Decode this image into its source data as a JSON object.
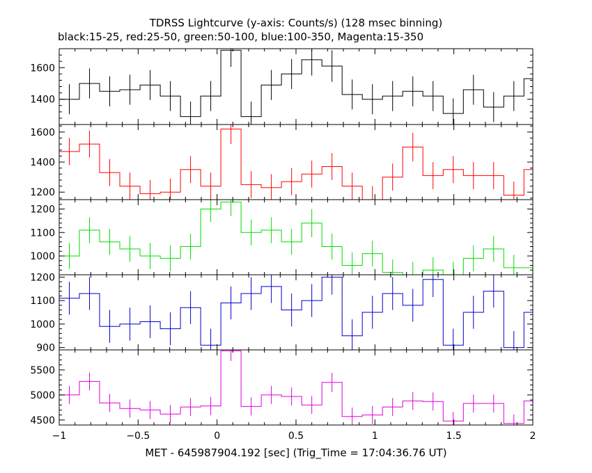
{
  "title": "TDRSS Lightcurve (y-axis: Counts/s) (128 msec binning)",
  "subtitle": "black:15-25, red:25-50, green:50-100, blue:100-350, Magenta:15-350",
  "xlabel": "MET - 645987904.192 [sec] (Trig_Time = 17:04:36.76 UT)",
  "chart_data": {
    "type": "line",
    "step": true,
    "error_bars": true,
    "title": "TDRSS Lightcurve (y-axis: Counts/s) (128 msec binning)",
    "subtitle": "black:15-25, red:25-50, green:50-100, blue:100-350, Magenta:15-350",
    "xlabel": "MET - 645987904.192 [sec] (Trig_Time = 17:04:36.76 UT)",
    "xlim": [
      -1,
      2
    ],
    "xticks": [
      -1,
      -0.5,
      0,
      0.5,
      1,
      1.5,
      2
    ],
    "xtick_labels": [
      "−1",
      "−0.5",
      "0",
      "0.5",
      "1",
      "1.5",
      "2"
    ],
    "bin_width": 0.128,
    "x": [
      -0.936,
      -0.808,
      -0.68,
      -0.552,
      -0.424,
      -0.296,
      -0.168,
      -0.04,
      0.088,
      0.216,
      0.344,
      0.472,
      0.6,
      0.728,
      0.856,
      0.984,
      1.112,
      1.24,
      1.368,
      1.496,
      1.624,
      1.752,
      1.88,
      2.008
    ],
    "panels": [
      {
        "name": "black:15-25",
        "color": "#000000",
        "ylim": [
          1240,
          1720
        ],
        "yticks": [
          1400,
          1600
        ],
        "values": [
          1400,
          1500,
          1450,
          1460,
          1490,
          1420,
          1290,
          1420,
          1710,
          1290,
          1490,
          1560,
          1650,
          1610,
          1430,
          1400,
          1420,
          1450,
          1420,
          1310,
          1460,
          1350,
          1420,
          1530
        ],
        "errors": [
          95,
          95,
          95,
          95,
          95,
          95,
          95,
          95,
          105,
          95,
          95,
          95,
          100,
          100,
          95,
          95,
          95,
          95,
          95,
          95,
          95,
          95,
          95,
          95
        ]
      },
      {
        "name": "red:25-50",
        "color": "#ff0000",
        "ylim": [
          1150,
          1650
        ],
        "yticks": [
          1200,
          1400,
          1600
        ],
        "values": [
          1470,
          1520,
          1330,
          1240,
          1190,
          1200,
          1350,
          1240,
          1620,
          1250,
          1230,
          1270,
          1320,
          1370,
          1240,
          1150,
          1300,
          1500,
          1310,
          1350,
          1310,
          1310,
          1180,
          1350
        ],
        "errors": [
          90,
          90,
          90,
          90,
          90,
          90,
          90,
          90,
          100,
          90,
          90,
          90,
          90,
          90,
          90,
          90,
          90,
          95,
          90,
          90,
          90,
          90,
          90,
          90
        ]
      },
      {
        "name": "green:50-100",
        "color": "#00dd00",
        "ylim": [
          920,
          1240
        ],
        "yticks": [
          1000,
          1100,
          1200
        ],
        "values": [
          1000,
          1110,
          1060,
          1030,
          1000,
          990,
          1040,
          1200,
          1230,
          1100,
          1110,
          1060,
          1140,
          1040,
          960,
          1010,
          930,
          920,
          940,
          920,
          990,
          1030,
          950,
          950
        ],
        "errors": [
          55,
          55,
          55,
          55,
          55,
          55,
          55,
          55,
          60,
          55,
          55,
          55,
          60,
          55,
          55,
          55,
          55,
          55,
          55,
          55,
          55,
          55,
          55,
          55
        ]
      },
      {
        "name": "blue:100-350",
        "color": "#0000cc",
        "ylim": [
          890,
          1210
        ],
        "yticks": [
          900,
          1000,
          1100,
          1200
        ],
        "values": [
          1110,
          1130,
          990,
          1000,
          1010,
          980,
          1070,
          910,
          1090,
          1130,
          1160,
          1060,
          1100,
          1200,
          950,
          1050,
          1130,
          1080,
          1190,
          910,
          1050,
          1140,
          900,
          1050
        ],
        "errors": [
          70,
          70,
          70,
          70,
          70,
          70,
          70,
          70,
          70,
          70,
          70,
          70,
          70,
          75,
          70,
          70,
          70,
          70,
          75,
          70,
          70,
          70,
          70,
          70
        ]
      },
      {
        "name": "Magenta:15-350",
        "color": "#dd00dd",
        "ylim": [
          4400,
          5900
        ],
        "yticks": [
          4500,
          5000,
          5500
        ],
        "values": [
          5000,
          5270,
          4840,
          4730,
          4700,
          4620,
          4760,
          4780,
          5880,
          4770,
          5000,
          4970,
          4800,
          5250,
          4570,
          4600,
          4760,
          4880,
          4870,
          4480,
          4830,
          4830,
          4430,
          4880
        ],
        "errors": [
          180,
          180,
          180,
          180,
          180,
          180,
          180,
          180,
          200,
          180,
          180,
          180,
          180,
          190,
          180,
          180,
          180,
          180,
          180,
          180,
          180,
          180,
          180,
          180
        ]
      }
    ]
  }
}
